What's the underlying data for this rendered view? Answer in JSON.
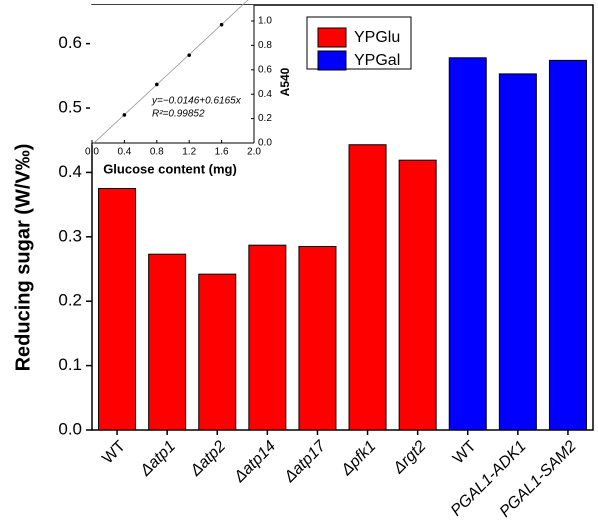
{
  "chart_data": [
    {
      "type": "bar",
      "ylabel": "Reducing sugar (W/V‰)",
      "categories": [
        "WT",
        "Δatp1",
        "Δatp2",
        "Δatp14",
        "Δatp17",
        "Δpfk1",
        "Δrgt2",
        "WT",
        "PGAL1-ADK1",
        "PGAL1-SAM2"
      ],
      "series": [
        {
          "name": "YPGlu",
          "color": "#ff0000",
          "values": [
            0.375,
            0.273,
            0.242,
            0.287,
            0.285,
            0.443,
            0.419,
            null,
            null,
            null
          ]
        },
        {
          "name": "YPGal",
          "color": "#0000ff",
          "values": [
            null,
            null,
            null,
            null,
            null,
            null,
            null,
            0.578,
            0.553,
            0.574
          ]
        }
      ],
      "ylim": [
        0,
        0.66
      ],
      "yticks": [
        {
          "value": 0,
          "label": "0.0"
        },
        0.1,
        0.2,
        0.3,
        0.4,
        0.5,
        0.6
      ],
      "legend": "top-center"
    },
    {
      "type": "scatter",
      "xlabel": "Glucose content (mg)",
      "ylabel": "A540",
      "x": [
        0.4,
        0.8,
        1.2,
        1.6
      ],
      "values": [
        0.23,
        0.48,
        0.72,
        0.97
      ],
      "fit_line": {
        "slope": 0.6165,
        "intercept": -0.0146
      },
      "annotations": [
        "y=−0.0146+0.6165x",
        "R²=0.99852"
      ],
      "xlim": [
        0,
        2
      ],
      "xticks": [
        {
          "value": 0,
          "label": "0.0"
        },
        0.4,
        0.8,
        1.2,
        1.6,
        {
          "value": 2,
          "label": "2.0"
        }
      ],
      "ylim": [
        0,
        1
      ],
      "yticks": [
        {
          "value": 0,
          "label": "0.0"
        },
        0.2,
        0.4,
        0.6,
        0.8,
        {
          "value": 1,
          "label": "1.0"
        }
      ]
    }
  ]
}
